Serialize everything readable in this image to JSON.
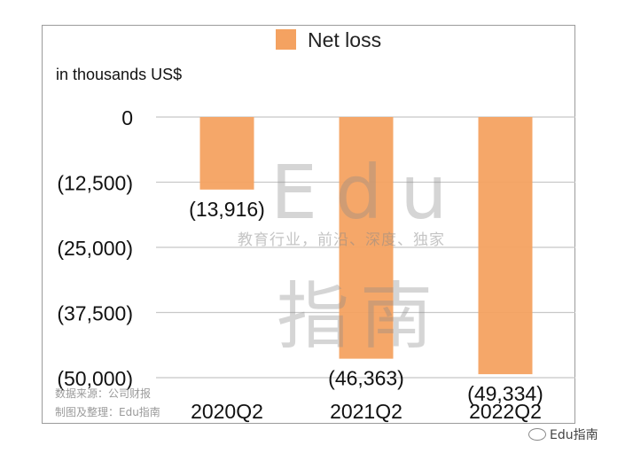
{
  "chart_data": {
    "type": "bar",
    "categories": [
      "2020Q2",
      "2021Q2",
      "2022Q2"
    ],
    "series": [
      {
        "name": "Net loss",
        "values": [
          -13916,
          -46363,
          -49334
        ]
      }
    ],
    "data_labels": [
      "(13,916)",
      "(46,363)",
      "(49,334)"
    ],
    "ylabel": "in thousands US$",
    "ylim": [
      -50000,
      0
    ],
    "yticks": [
      0,
      -12500,
      -25000,
      -37500,
      -50000
    ],
    "ytick_labels": [
      "0",
      "(12,500)",
      "(25,000)",
      "(37,500)",
      "(50,000)"
    ],
    "legend_position": "top",
    "grid": true,
    "bar_color": "#f4a261",
    "grid_color": "#c8c8c8"
  },
  "watermark": {
    "edu": "Edu",
    "slogan": "教育行业，前沿、深度、独家",
    "zhinan": "指南"
  },
  "notes": {
    "source": "数据来源：公司财报",
    "compiled": "制图及整理：Edu指南"
  },
  "brand": "Edu指南"
}
